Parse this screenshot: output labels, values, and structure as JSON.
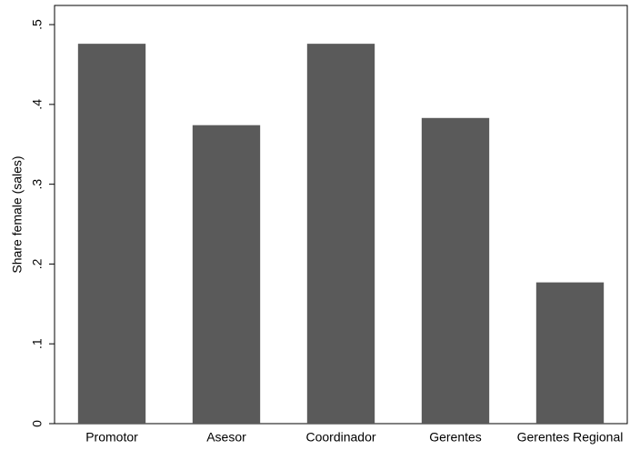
{
  "chart_data": {
    "type": "bar",
    "y_label": "Share female (sales)",
    "categories": [
      "Promotor",
      "Asesor",
      "Coordinador",
      "Gerentes",
      "Gerentes Regional"
    ],
    "values": [
      0.476,
      0.374,
      0.476,
      0.383,
      0.177
    ],
    "color": "#5a5a5a",
    "ylim": [
      0,
      0.524
    ],
    "yticks": [
      0,
      {
        "value": 0.1,
        "label": ".1"
      },
      {
        "value": 0.2,
        "label": ".2"
      },
      {
        "value": 0.3,
        "label": ".3"
      },
      {
        "value": 0.4,
        "label": ".4"
      },
      {
        "value": 0.5,
        "label": ".5"
      }
    ],
    "grid": false
  }
}
